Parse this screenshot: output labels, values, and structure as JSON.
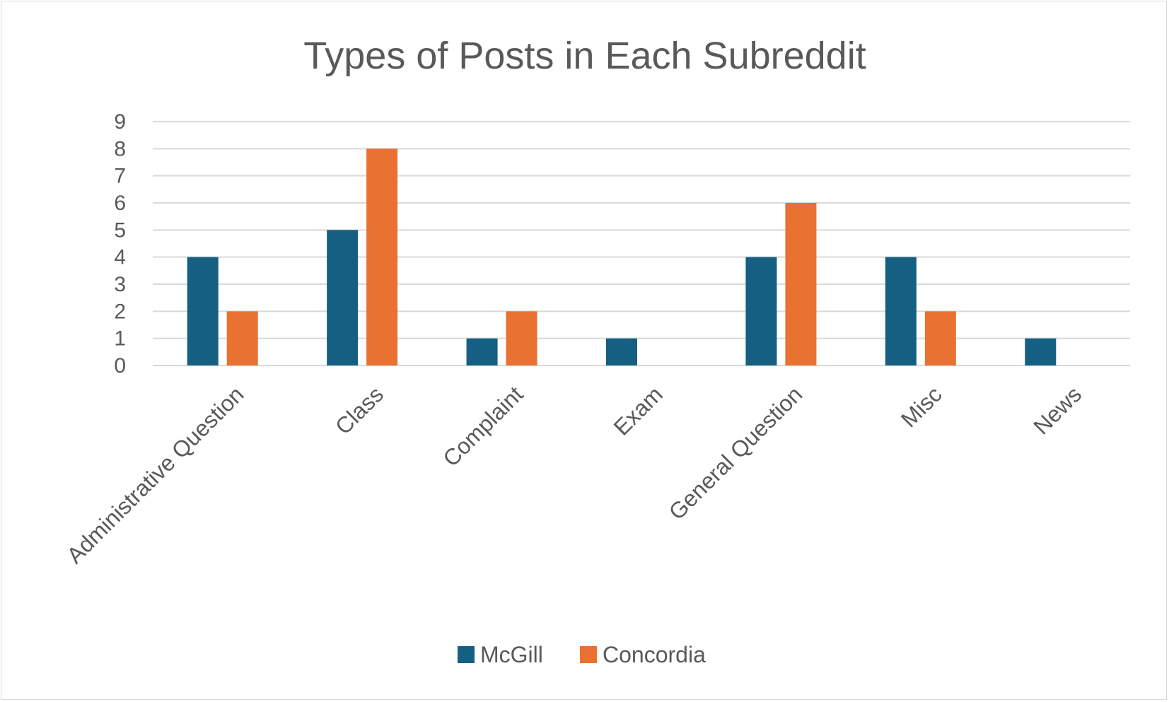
{
  "chart_data": {
    "type": "bar",
    "title": "Types of Posts in Each Subreddit",
    "xlabel": "",
    "ylabel": "",
    "categories": [
      "Administrative Question",
      "Class",
      "Complaint",
      "Exam",
      "General Question",
      "Misc",
      "News"
    ],
    "series": [
      {
        "name": "McGill",
        "color": "#156082",
        "values": [
          4,
          5,
          1,
          1,
          4,
          4,
          1
        ]
      },
      {
        "name": "Concordia",
        "color": "#E97132",
        "values": [
          2,
          8,
          2,
          0,
          6,
          2,
          0
        ]
      }
    ],
    "ylim": [
      0,
      9
    ],
    "yticks": [
      "0",
      "1",
      "2",
      "3",
      "4",
      "5",
      "6",
      "7",
      "8",
      "9"
    ],
    "grid": true,
    "legend_position": "bottom"
  }
}
